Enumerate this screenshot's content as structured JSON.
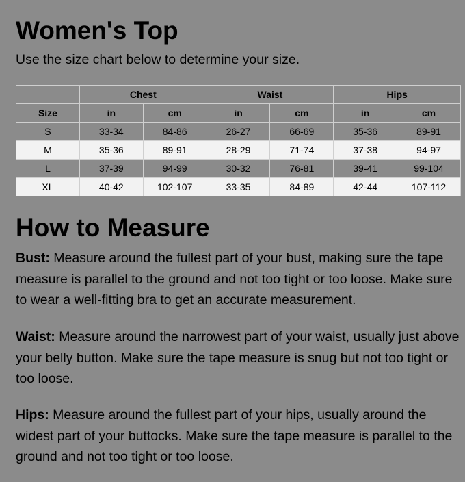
{
  "title": "Women's Top",
  "intro": "Use the size chart below to determine your size.",
  "table": {
    "groups": [
      "Chest",
      "Waist",
      "Hips"
    ],
    "size_header": "Size",
    "units": [
      "in",
      "cm",
      "in",
      "cm",
      "in",
      "cm"
    ],
    "rows": [
      [
        "S",
        "33-34",
        "84-86",
        "26-27",
        "66-69",
        "35-36",
        "89-91"
      ],
      [
        "M",
        "35-36",
        "89-91",
        "28-29",
        "71-74",
        "37-38",
        "94-97"
      ],
      [
        "L",
        "37-39",
        "94-99",
        "30-32",
        "76-81",
        "39-41",
        "99-104"
      ],
      [
        "XL",
        "40-42",
        "102-107",
        "33-35",
        "84-89",
        "42-44",
        "107-112"
      ]
    ]
  },
  "how_title": "How to Measure",
  "sections": [
    {
      "label": "Bust:",
      "text": " Measure around the fullest part of your bust, making sure the tape measure is parallel to the ground and not too tight or too loose. Make sure to wear a well-fitting bra to get an accurate measurement."
    },
    {
      "label": "Waist:",
      "text": " Measure around the narrowest part of your waist, usually just above your belly button. Make sure the tape measure is snug but not too tight or too loose."
    },
    {
      "label": "Hips:",
      "text": " Measure around the fullest part of your hips, usually around the widest part of your buttocks. Make sure the tape measure is parallel to the ground and not too tight or too loose."
    }
  ]
}
